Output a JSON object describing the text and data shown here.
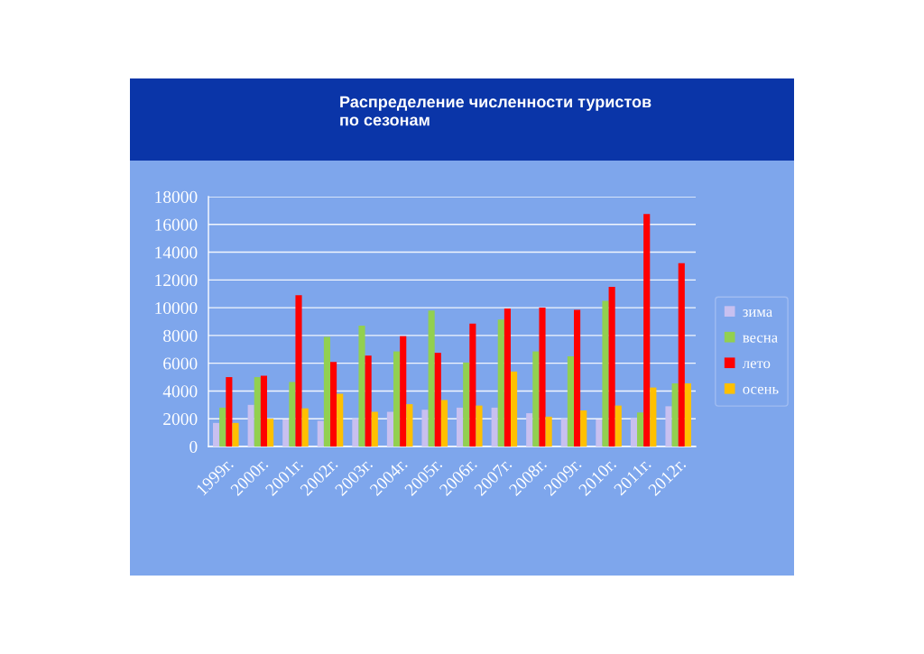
{
  "chart_data": {
    "type": "bar",
    "title": "Распределение численности туристов\nпо сезонам",
    "categories": [
      "1999г.",
      "2000г.",
      "2001г.",
      "2002г.",
      "2003г.",
      "2004г.",
      "2005г.",
      "2006г.",
      "2007г.",
      "2008г.",
      "2009г.",
      "2010г.",
      "2011г.",
      "2012г."
    ],
    "series": [
      {
        "name": "зима",
        "color": "#c8c0f0",
        "values": [
          1700,
          3000,
          1950,
          1850,
          2000,
          2500,
          2650,
          2800,
          2800,
          2400,
          2000,
          1950,
          2050,
          2900
        ]
      },
      {
        "name": "весна",
        "color": "#92d050",
        "values": [
          2800,
          5000,
          4650,
          7900,
          8700,
          6850,
          9800,
          6050,
          9150,
          6850,
          6500,
          10500,
          2450,
          4550
        ]
      },
      {
        "name": "лето",
        "color": "#ff0000",
        "values": [
          5000,
          5100,
          10900,
          6100,
          6550,
          7950,
          6750,
          8850,
          9950,
          10000,
          9850,
          11500,
          16750,
          13200
        ]
      },
      {
        "name": "осень",
        "color": "#ffc000",
        "values": [
          1700,
          2000,
          2750,
          3800,
          2500,
          3050,
          3350,
          2950,
          5400,
          2150,
          2600,
          2950,
          4250,
          4550
        ]
      }
    ],
    "ylim": [
      0,
      18000
    ],
    "yticks": [
      0,
      2000,
      4000,
      6000,
      8000,
      10000,
      12000,
      14000,
      16000,
      18000
    ],
    "grid": "y",
    "legend": "right"
  }
}
